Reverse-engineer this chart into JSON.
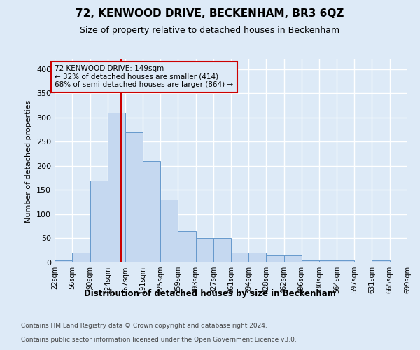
{
  "title": "72, KENWOOD DRIVE, BECKENHAM, BR3 6QZ",
  "subtitle": "Size of property relative to detached houses in Beckenham",
  "xlabel": "Distribution of detached houses by size in Beckenham",
  "ylabel": "Number of detached properties",
  "footnote1": "Contains HM Land Registry data © Crown copyright and database right 2024.",
  "footnote2": "Contains public sector information licensed under the Open Government Licence v3.0.",
  "annotation_line1": "72 KENWOOD DRIVE: 149sqm",
  "annotation_line2": "← 32% of detached houses are smaller (414)",
  "annotation_line3": "68% of semi-detached houses are larger (864) →",
  "property_size": 149,
  "bin_edges": [
    22,
    56,
    90,
    124,
    157,
    191,
    225,
    259,
    293,
    327,
    361,
    394,
    428,
    462,
    496,
    530,
    564,
    597,
    631,
    665,
    699
  ],
  "bar_heights": [
    5,
    20,
    170,
    310,
    270,
    210,
    130,
    65,
    50,
    50,
    20,
    20,
    15,
    15,
    5,
    5,
    5,
    1,
    5,
    1
  ],
  "bar_color": "#c5d8f0",
  "bar_edge_color": "#6699cc",
  "vline_color": "#cc0000",
  "annotation_box_edgecolor": "#cc0000",
  "background_color": "#ddeaf7",
  "grid_color": "#ffffff",
  "ylim": [
    0,
    420
  ],
  "yticks": [
    0,
    50,
    100,
    150,
    200,
    250,
    300,
    350,
    400
  ]
}
